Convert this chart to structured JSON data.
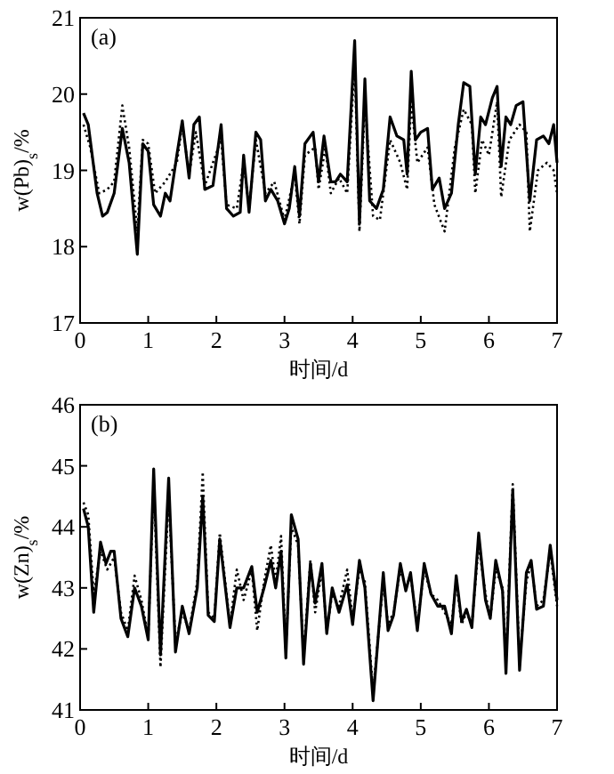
{
  "chart_data": [
    {
      "type": "line",
      "xlabel": "时间/d",
      "ylabel": "w(Pb)$_{s}$/%",
      "annotations": [
        "(a)"
      ],
      "xlim": [
        0,
        7
      ],
      "ylim": [
        17,
        21
      ],
      "xticks": [
        0,
        1,
        2,
        3,
        4,
        5,
        6,
        7
      ],
      "yticks": [
        17,
        18,
        19,
        20,
        21
      ],
      "grid": false,
      "series": [
        {
          "color": "#000000",
          "line_style": "solid",
          "x": [
            0.05,
            0.12,
            0.25,
            0.33,
            0.4,
            0.5,
            0.62,
            0.72,
            0.8,
            0.84,
            0.92,
            1.0,
            1.08,
            1.18,
            1.25,
            1.32,
            1.42,
            1.5,
            1.6,
            1.67,
            1.75,
            1.83,
            1.95,
            2.07,
            2.15,
            2.25,
            2.35,
            2.4,
            2.48,
            2.58,
            2.65,
            2.72,
            2.8,
            2.9,
            3.0,
            3.07,
            3.15,
            3.22,
            3.3,
            3.42,
            3.5,
            3.58,
            3.68,
            3.75,
            3.82,
            3.92,
            4.03,
            4.1,
            4.18,
            4.25,
            4.35,
            4.45,
            4.55,
            4.65,
            4.75,
            4.8,
            4.86,
            4.92,
            5.0,
            5.1,
            5.17,
            5.27,
            5.35,
            5.45,
            5.55,
            5.63,
            5.72,
            5.8,
            5.88,
            5.95,
            6.05,
            6.12,
            6.18,
            6.25,
            6.32,
            6.4,
            6.5,
            6.6,
            6.7,
            6.8,
            6.88,
            6.95,
            7.0
          ],
          "values": [
            19.75,
            19.6,
            18.7,
            18.4,
            18.45,
            18.7,
            19.55,
            19.1,
            18.3,
            17.9,
            19.35,
            19.25,
            18.55,
            18.4,
            18.7,
            18.6,
            19.2,
            19.65,
            18.9,
            19.6,
            19.7,
            18.75,
            18.8,
            19.6,
            18.5,
            18.4,
            18.45,
            19.2,
            18.45,
            19.5,
            19.4,
            18.6,
            18.75,
            18.6,
            18.3,
            18.5,
            19.05,
            18.4,
            19.35,
            19.5,
            18.85,
            19.45,
            18.85,
            18.85,
            18.95,
            18.85,
            20.7,
            18.3,
            20.2,
            18.6,
            18.5,
            18.75,
            19.7,
            19.45,
            19.4,
            18.95,
            20.3,
            19.4,
            19.5,
            19.55,
            18.75,
            18.9,
            18.5,
            18.7,
            19.6,
            20.15,
            20.1,
            18.95,
            19.7,
            19.6,
            19.95,
            20.1,
            19.05,
            19.7,
            19.6,
            19.85,
            19.9,
            18.6,
            19.4,
            19.45,
            19.35,
            19.6,
            19.1
          ]
        },
        {
          "color": "#000000",
          "line_style": "dotted",
          "x": [
            0.05,
            0.15,
            0.28,
            0.4,
            0.5,
            0.62,
            0.72,
            0.84,
            0.92,
            1.0,
            1.1,
            1.25,
            1.42,
            1.5,
            1.6,
            1.7,
            1.83,
            2.07,
            2.15,
            2.3,
            2.4,
            2.48,
            2.58,
            2.72,
            2.85,
            3.0,
            3.15,
            3.22,
            3.3,
            3.45,
            3.5,
            3.6,
            3.68,
            3.8,
            3.92,
            4.03,
            4.1,
            4.18,
            4.3,
            4.4,
            4.55,
            4.7,
            4.8,
            4.86,
            4.95,
            5.1,
            5.2,
            5.35,
            5.5,
            5.63,
            5.75,
            5.8,
            5.9,
            6.0,
            6.12,
            6.18,
            6.3,
            6.45,
            6.55,
            6.6,
            6.72,
            6.85,
            6.95,
            7.0
          ],
          "values": [
            19.6,
            19.3,
            18.7,
            18.75,
            18.85,
            19.85,
            19.3,
            18.2,
            19.4,
            19.35,
            18.7,
            18.85,
            19.1,
            19.6,
            18.95,
            19.5,
            18.8,
            19.4,
            18.55,
            18.5,
            19.1,
            18.5,
            19.4,
            18.7,
            18.85,
            18.35,
            18.95,
            18.3,
            19.2,
            19.3,
            18.75,
            19.3,
            18.7,
            18.9,
            18.7,
            20.4,
            18.2,
            19.9,
            18.4,
            18.35,
            19.4,
            19.1,
            18.75,
            19.9,
            19.1,
            19.3,
            18.55,
            18.2,
            19.3,
            19.8,
            19.6,
            18.7,
            19.4,
            19.2,
            19.9,
            18.65,
            19.4,
            19.6,
            19.5,
            18.2,
            19.0,
            19.1,
            19.0,
            18.7
          ]
        }
      ]
    },
    {
      "type": "line",
      "xlabel": "时间/d",
      "ylabel": "w(Zn)$_{s}$/%",
      "annotations": [
        "(b)"
      ],
      "xlim": [
        0,
        7
      ],
      "ylim": [
        41,
        46
      ],
      "xticks": [
        0,
        1,
        2,
        3,
        4,
        5,
        6,
        7
      ],
      "yticks": [
        41,
        42,
        43,
        44,
        45,
        46
      ],
      "grid": false,
      "series": [
        {
          "color": "#000000",
          "line_style": "solid",
          "x": [
            0.05,
            0.12,
            0.2,
            0.3,
            0.38,
            0.45,
            0.5,
            0.6,
            0.7,
            0.8,
            0.9,
            1.0,
            1.08,
            1.18,
            1.3,
            1.4,
            1.5,
            1.6,
            1.72,
            1.8,
            1.88,
            1.97,
            2.05,
            2.2,
            2.3,
            2.4,
            2.52,
            2.6,
            2.7,
            2.8,
            2.87,
            2.95,
            3.02,
            3.1,
            3.2,
            3.28,
            3.38,
            3.45,
            3.55,
            3.62,
            3.7,
            3.8,
            3.92,
            4.0,
            4.1,
            4.18,
            4.3,
            4.45,
            4.52,
            4.6,
            4.7,
            4.78,
            4.85,
            4.95,
            5.05,
            5.15,
            5.25,
            5.35,
            5.45,
            5.52,
            5.6,
            5.67,
            5.75,
            5.85,
            5.95,
            6.02,
            6.1,
            6.2,
            6.25,
            6.35,
            6.45,
            6.55,
            6.62,
            6.7,
            6.8,
            6.9,
            7.0
          ],
          "values": [
            44.3,
            44.0,
            42.6,
            43.75,
            43.4,
            43.6,
            43.6,
            42.5,
            42.2,
            43.0,
            42.7,
            42.15,
            44.95,
            41.9,
            44.8,
            41.95,
            42.7,
            42.25,
            43.0,
            44.5,
            42.55,
            42.45,
            43.8,
            42.35,
            43.0,
            43.0,
            43.35,
            42.6,
            43.0,
            43.45,
            43.0,
            43.6,
            41.85,
            44.2,
            43.8,
            41.75,
            43.4,
            42.75,
            43.4,
            42.25,
            43.0,
            42.6,
            43.05,
            42.4,
            43.45,
            43.0,
            41.15,
            43.25,
            42.3,
            42.55,
            43.4,
            42.95,
            43.25,
            42.3,
            43.4,
            42.9,
            42.7,
            42.7,
            42.25,
            43.2,
            42.45,
            42.65,
            42.35,
            43.9,
            42.8,
            42.5,
            43.45,
            42.95,
            41.6,
            44.6,
            41.65,
            43.25,
            43.45,
            42.65,
            42.7,
            43.7,
            42.8
          ]
        },
        {
          "color": "#000000",
          "line_style": "dotted",
          "x": [
            0.05,
            0.12,
            0.2,
            0.3,
            0.4,
            0.5,
            0.6,
            0.7,
            0.8,
            0.9,
            1.0,
            1.08,
            1.18,
            1.3,
            1.4,
            1.5,
            1.6,
            1.72,
            1.8,
            1.88,
            1.97,
            2.05,
            2.2,
            2.3,
            2.4,
            2.52,
            2.6,
            2.7,
            2.8,
            2.87,
            2.95,
            3.02,
            3.1,
            3.2,
            3.28,
            3.38,
            3.45,
            3.55,
            3.62,
            3.7,
            3.8,
            3.92,
            4.0,
            4.1,
            4.18,
            4.3,
            4.45,
            4.52,
            4.6,
            4.7,
            4.78,
            4.85,
            4.95,
            5.05,
            5.15,
            5.25,
            5.35,
            5.45,
            5.52,
            5.6,
            5.67,
            5.75,
            5.85,
            5.95,
            6.02,
            6.1,
            6.2,
            6.25,
            6.35,
            6.45,
            6.55,
            6.62,
            6.7,
            6.8,
            6.9,
            7.0
          ],
          "values": [
            44.4,
            44.2,
            42.9,
            43.6,
            43.3,
            43.5,
            42.6,
            42.3,
            43.2,
            42.8,
            42.2,
            44.7,
            41.7,
            44.5,
            42.1,
            42.6,
            42.3,
            43.1,
            44.9,
            42.6,
            42.5,
            43.9,
            42.4,
            43.3,
            42.8,
            43.3,
            42.3,
            43.1,
            43.7,
            43.1,
            43.85,
            42.0,
            44.0,
            43.7,
            41.9,
            43.45,
            42.6,
            43.3,
            42.3,
            42.9,
            42.7,
            43.3,
            42.5,
            43.3,
            43.1,
            41.3,
            43.1,
            42.4,
            42.6,
            43.3,
            43.0,
            43.2,
            42.4,
            43.3,
            42.9,
            42.8,
            42.6,
            42.4,
            43.1,
            42.4,
            42.6,
            42.4,
            43.7,
            42.9,
            42.5,
            43.3,
            43.0,
            41.8,
            44.7,
            41.8,
            43.1,
            43.4,
            42.7,
            42.8,
            43.6,
            42.7
          ]
        }
      ]
    }
  ]
}
